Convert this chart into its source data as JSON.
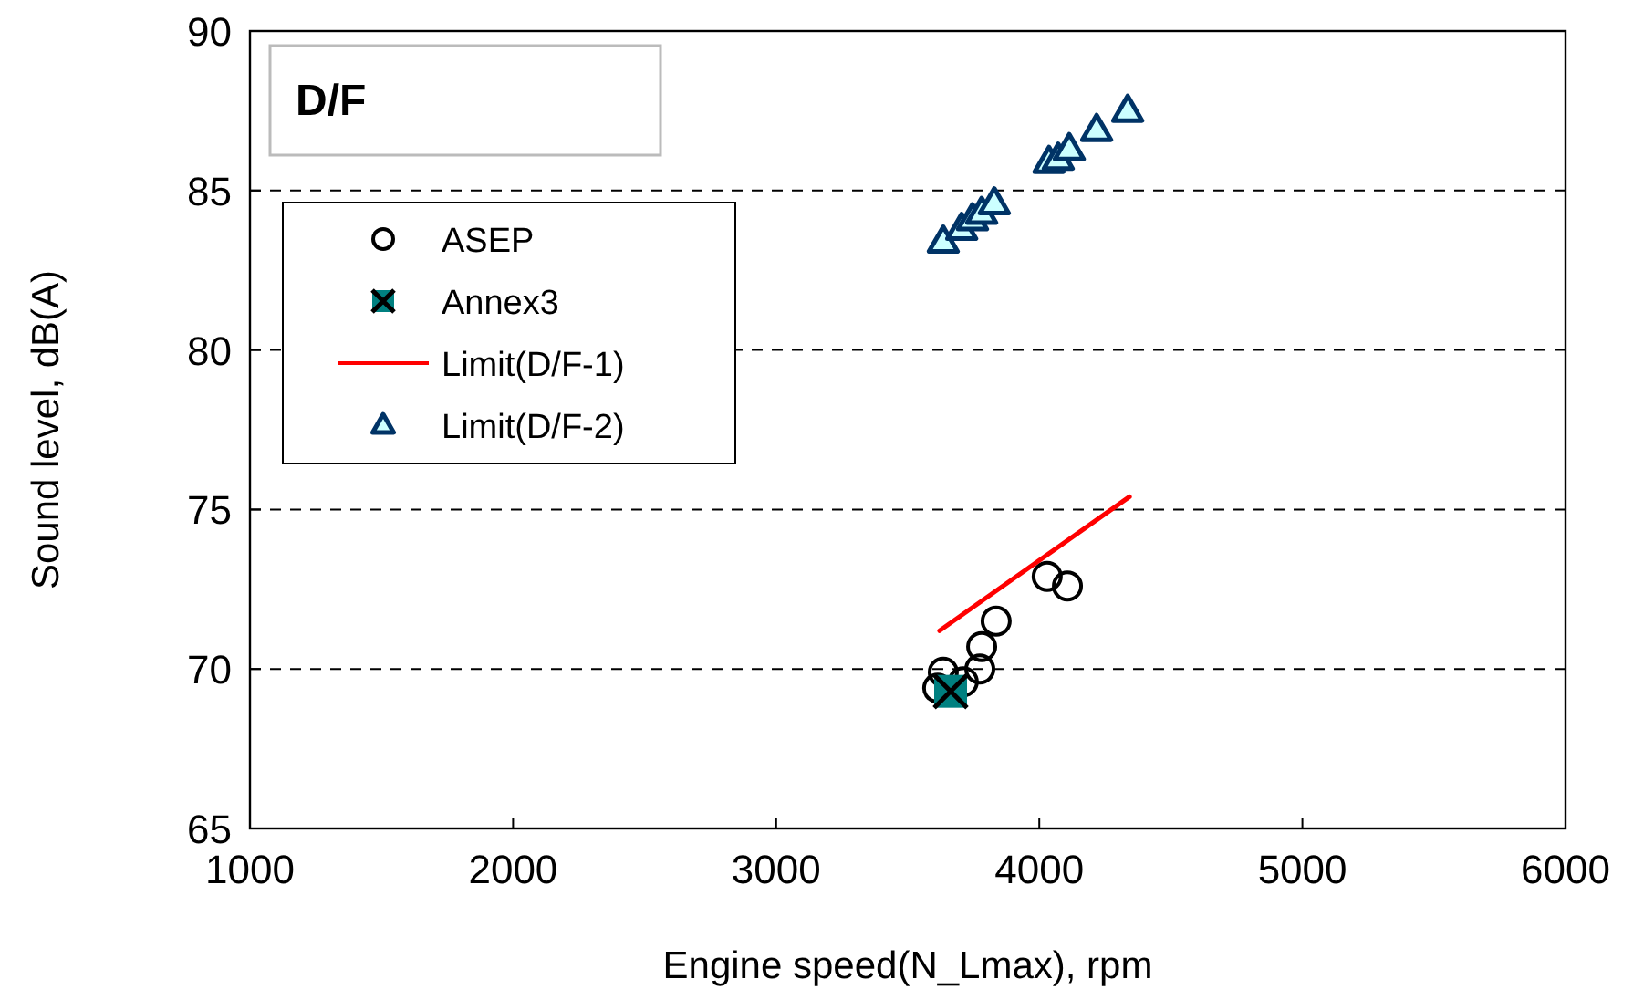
{
  "chart_data": {
    "type": "scatter",
    "title": "D/F",
    "xlabel": "Engine speed(N_Lmax), rpm",
    "ylabel": "Sound level, dB(A)",
    "xlim": [
      1000,
      6000
    ],
    "xticks": [
      1000,
      2000,
      3000,
      4000,
      5000,
      6000
    ],
    "ylim": [
      65,
      90
    ],
    "yticks": [
      65,
      70,
      75,
      80,
      85,
      90
    ],
    "grid": "y",
    "legend": "top left",
    "series": [
      {
        "name": "ASEP",
        "marker": "circle",
        "color": "#000000",
        "x": [
          3614,
          3635,
          3711,
          3774,
          3781,
          3836,
          4030,
          4107
        ],
        "values": [
          69.4,
          69.9,
          69.6,
          70.0,
          70.7,
          71.5,
          72.9,
          72.6
        ]
      },
      {
        "name": "Annex3",
        "marker": "square",
        "color": "#008080",
        "x": [
          3663
        ],
        "values": [
          69.3
        ]
      },
      {
        "name": "Limit(D/F-1)",
        "type": "line",
        "color": "#ff0000",
        "x": [
          3621,
          4343
        ],
        "values": [
          71.2,
          75.4
        ]
      },
      {
        "name": "Limit(D/F-2)",
        "marker": "triangle",
        "color": "#ccffff",
        "x": [
          3635,
          3705,
          3746,
          3781,
          3829,
          4037,
          4072,
          4114,
          4218,
          4336
        ],
        "values": [
          83.4,
          83.8,
          84.1,
          84.3,
          84.6,
          85.9,
          86.0,
          86.3,
          86.9,
          87.5
        ]
      }
    ]
  }
}
